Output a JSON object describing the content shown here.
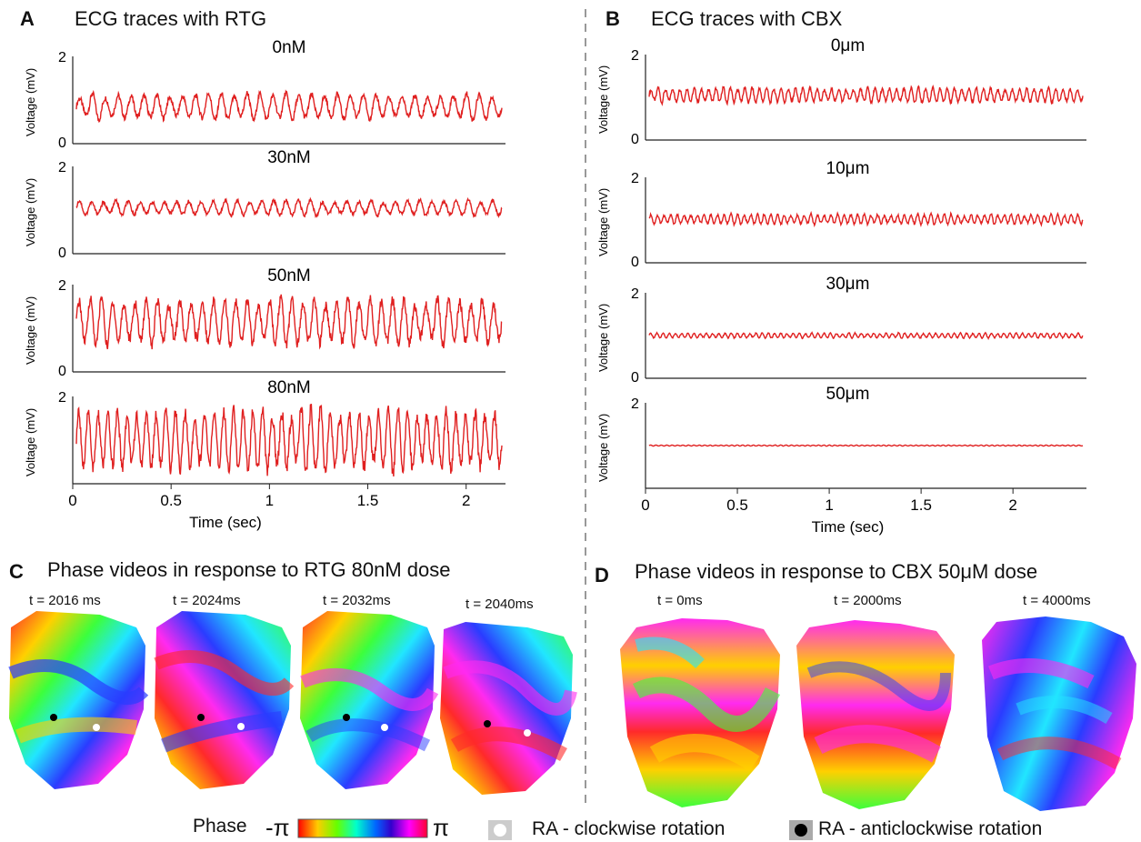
{
  "panels": {
    "A": {
      "letter": "A",
      "title": "ECG traces with RTG"
    },
    "B": {
      "letter": "B",
      "title": "ECG traces with CBX"
    },
    "C": {
      "letter": "C",
      "title": "Phase videos in response to RTG 80nM dose"
    },
    "D": {
      "letter": "D",
      "title": "Phase videos in response to CBX 50μM dose"
    }
  },
  "chart_data": [
    {
      "type": "line",
      "panel": "A",
      "ylabel": "Voltage (mV)",
      "xlabel": "Time (sec)",
      "xlim": [
        0,
        2.2
      ],
      "ylim": [
        0,
        2
      ],
      "xticks": [
        "0",
        "0.5",
        "1",
        "1.5",
        "2"
      ],
      "yticks": [
        "0",
        "2"
      ],
      "series": [
        {
          "name": "0nM",
          "baseline": 0.85,
          "amplitude": 0.25,
          "beats": 33
        },
        {
          "name": "30nM",
          "baseline": 1.05,
          "amplitude": 0.15,
          "beats": 35
        },
        {
          "name": "50nM",
          "baseline": 1.15,
          "amplitude": 0.45,
          "beats": 38
        },
        {
          "name": "80nM",
          "baseline": 1.0,
          "amplitude": 0.6,
          "beats": 44
        }
      ]
    },
    {
      "type": "line",
      "panel": "B",
      "ylabel": "Voltage (mV)",
      "xlabel": "Time (sec)",
      "xlim": [
        0,
        2.4
      ],
      "ylim": [
        0,
        2
      ],
      "xticks": [
        "0",
        "0.5",
        "1",
        "1.5",
        "2"
      ],
      "yticks": [
        "0",
        "2"
      ],
      "series": [
        {
          "name": "0μm",
          "baseline": 1.05,
          "amplitude": 0.15,
          "beats": 60
        },
        {
          "name": "10μm",
          "baseline": 1.02,
          "amplitude": 0.1,
          "beats": 65
        },
        {
          "name": "30μm",
          "baseline": 1.0,
          "amplitude": 0.05,
          "beats": 70
        },
        {
          "name": "50μm",
          "baseline": 1.0,
          "amplitude": 0.01,
          "beats": 80
        }
      ]
    }
  ],
  "phase_videos": {
    "C": [
      "t = 2016 ms",
      "t = 2024ms",
      "t = 2032ms",
      "t = 2040ms"
    ],
    "D": [
      "t = 0ms",
      "t = 2000ms",
      "t = 4000ms"
    ]
  },
  "legend": {
    "phase_label": "Phase",
    "minus_pi": "-π",
    "plus_pi": "π",
    "clockwise": "RA - clockwise rotation",
    "anticlockwise": "RA - anticlockwise rotation"
  },
  "colors": {
    "trace": "#e02020",
    "divider": "#999999"
  }
}
